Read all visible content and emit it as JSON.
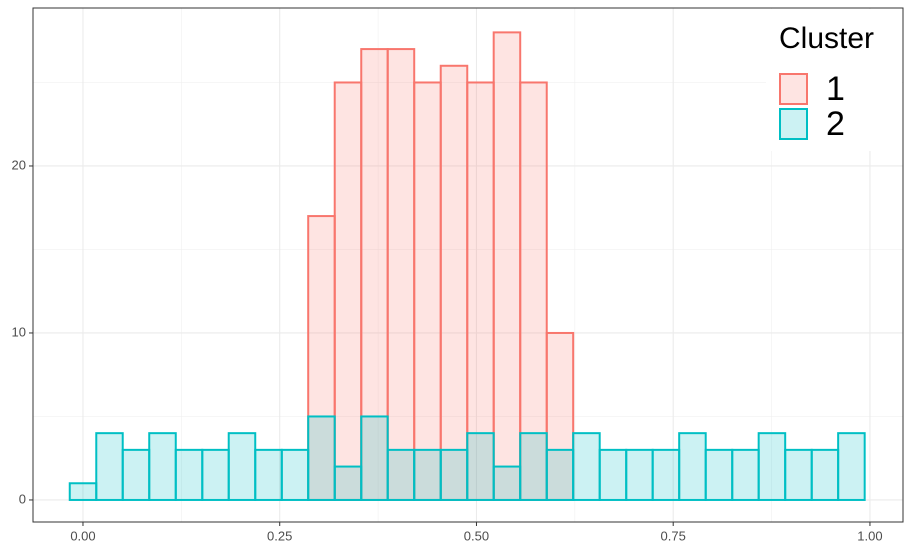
{
  "chart_data": {
    "type": "histogram",
    "bins": [
      -0.0168,
      0.0169,
      0.0505,
      0.0842,
      0.1179,
      0.1516,
      0.1852,
      0.2189,
      0.2526,
      0.2862,
      0.3199,
      0.3536,
      0.3872,
      0.4209,
      0.4546,
      0.4883,
      0.5219,
      0.5556,
      0.5893,
      0.6229,
      0.6566,
      0.6903,
      0.7239,
      0.7576,
      0.7913,
      0.825,
      0.8586,
      0.8923,
      0.926,
      0.9596,
      0.9933
    ],
    "series": [
      {
        "name": "1",
        "color": "#F8766D",
        "values": [
          0,
          0,
          0,
          0,
          0,
          0,
          0,
          0,
          0,
          17,
          25,
          27,
          27,
          25,
          26,
          25,
          28,
          25,
          10,
          0,
          0,
          0,
          0,
          0,
          0,
          0,
          0,
          0,
          0,
          0
        ]
      },
      {
        "name": "2",
        "color": "#00BFC4",
        "values": [
          1,
          4,
          3,
          4,
          3,
          3,
          4,
          3,
          3,
          5,
          2,
          5,
          3,
          3,
          3,
          4,
          2,
          4,
          3,
          4,
          3,
          3,
          3,
          4,
          3,
          3,
          4,
          3,
          3,
          4
        ]
      }
    ],
    "xlim": [
      -0.0635,
      1.042
    ],
    "xticks": [
      {
        "value": 0,
        "label": "0.00"
      },
      {
        "value": 0.25,
        "label": "0.25"
      },
      {
        "value": 0.5,
        "label": "0.50"
      },
      {
        "value": 0.75,
        "label": "0.75"
      },
      {
        "value": 1,
        "label": "1.00"
      }
    ],
    "ylim": [
      -1.32,
      29.46
    ],
    "yticks": [
      0,
      10,
      20
    ],
    "grid": true,
    "legend_title": "Cluster",
    "legend_position": "top-right"
  }
}
